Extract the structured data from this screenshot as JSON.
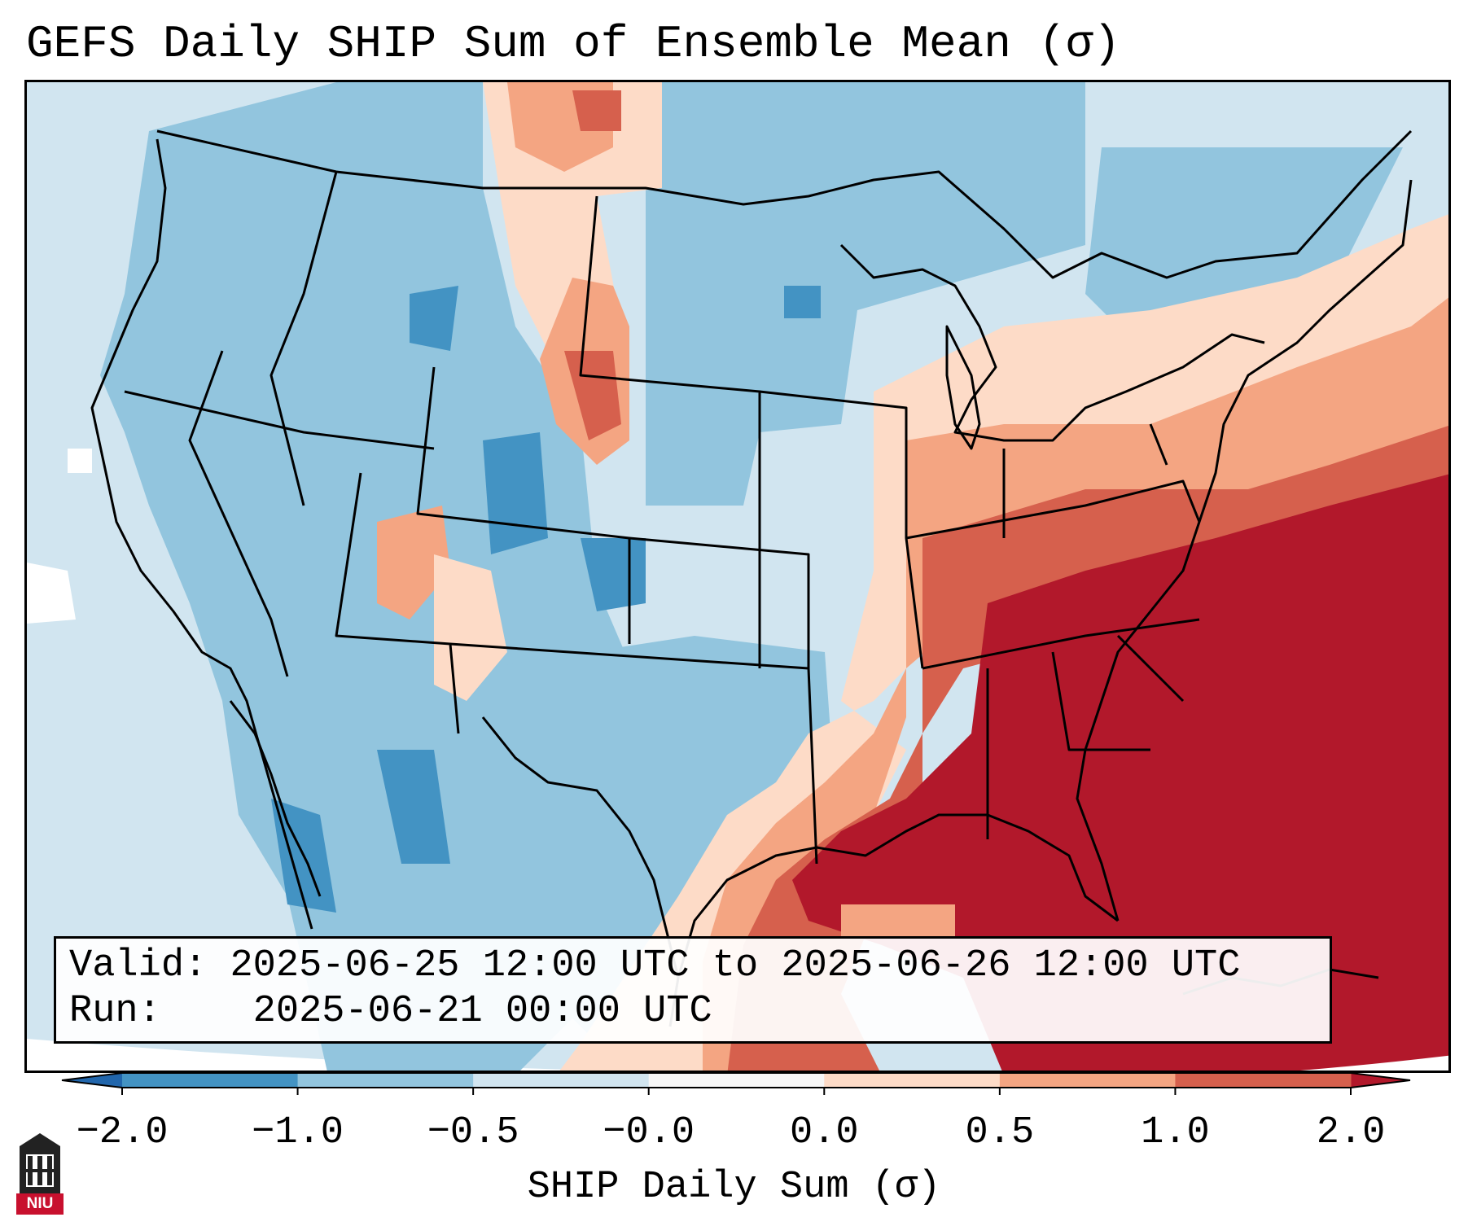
{
  "title": "GEFS Daily SHIP Sum of Ensemble Mean (σ)",
  "info": {
    "valid_label": "Valid:",
    "valid_value": "2025-06-25 12:00 UTC to 2025-06-26 12:00 UTC",
    "run_label": "Run:",
    "run_value": "2025-06-21 00:00 UTC"
  },
  "colorbar": {
    "label": "SHIP Daily Sum (σ)",
    "ticks": [
      "−2.0",
      "−1.0",
      "−0.5",
      "−0.0",
      "0.0",
      "0.5",
      "1.0",
      "2.0"
    ],
    "colors": [
      "#4393c3",
      "#92c5de",
      "#d1e5f0",
      "#f7f7f7",
      "#fddbc7",
      "#f4a582",
      "#d6604d",
      "#b2182b"
    ],
    "extend_low_color": "#2166ac",
    "extend_high_color": "#b2182b"
  },
  "map": {
    "region": "Continental United States",
    "colors": {
      "ocean_neutral": "#d1e5f0",
      "land_light_blue": "#92c5de",
      "blue": "#4393c3",
      "light_red": "#fddbc7",
      "salmon": "#f4a582",
      "red": "#d6604d",
      "dark_red": "#b2182b",
      "outline": "#000000"
    }
  },
  "logo": {
    "text": "NIU",
    "icon": "university-tower-icon"
  }
}
